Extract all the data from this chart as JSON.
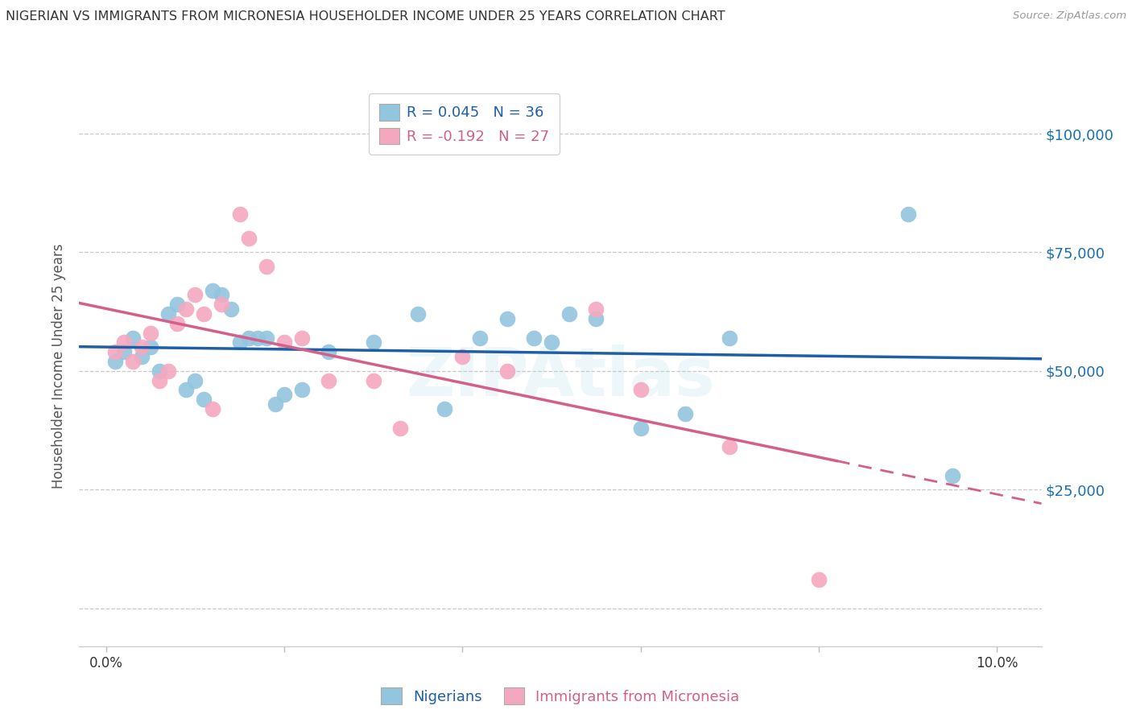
{
  "title": "NIGERIAN VS IMMIGRANTS FROM MICRONESIA HOUSEHOLDER INCOME UNDER 25 YEARS CORRELATION CHART",
  "source": "Source: ZipAtlas.com",
  "ylabel": "Householder Income Under 25 years",
  "legend_blue_label": "Nigerians",
  "legend_pink_label": "Immigrants from Micronesia",
  "r_blue": 0.045,
  "n_blue": 36,
  "r_pink": -0.192,
  "n_pink": 27,
  "blue_color": "#92c5de",
  "pink_color": "#f4a8c0",
  "blue_line_color": "#1f5fa6",
  "pink_line_color": "#d45f8a",
  "blue_scatter": [
    [
      0.001,
      52000
    ],
    [
      0.002,
      54000
    ],
    [
      0.003,
      57000
    ],
    [
      0.004,
      53000
    ],
    [
      0.005,
      55000
    ],
    [
      0.006,
      50000
    ],
    [
      0.007,
      62000
    ],
    [
      0.008,
      64000
    ],
    [
      0.009,
      46000
    ],
    [
      0.01,
      48000
    ],
    [
      0.011,
      44000
    ],
    [
      0.012,
      67000
    ],
    [
      0.013,
      66000
    ],
    [
      0.014,
      63000
    ],
    [
      0.015,
      56000
    ],
    [
      0.016,
      57000
    ],
    [
      0.017,
      57000
    ],
    [
      0.018,
      57000
    ],
    [
      0.019,
      43000
    ],
    [
      0.02,
      45000
    ],
    [
      0.022,
      46000
    ],
    [
      0.025,
      54000
    ],
    [
      0.03,
      56000
    ],
    [
      0.035,
      62000
    ],
    [
      0.038,
      42000
    ],
    [
      0.042,
      57000
    ],
    [
      0.045,
      61000
    ],
    [
      0.048,
      57000
    ],
    [
      0.05,
      56000
    ],
    [
      0.052,
      62000
    ],
    [
      0.055,
      61000
    ],
    [
      0.06,
      38000
    ],
    [
      0.065,
      41000
    ],
    [
      0.07,
      57000
    ],
    [
      0.09,
      83000
    ],
    [
      0.095,
      28000
    ]
  ],
  "pink_scatter": [
    [
      0.001,
      54000
    ],
    [
      0.002,
      56000
    ],
    [
      0.003,
      52000
    ],
    [
      0.004,
      55000
    ],
    [
      0.005,
      58000
    ],
    [
      0.006,
      48000
    ],
    [
      0.007,
      50000
    ],
    [
      0.008,
      60000
    ],
    [
      0.009,
      63000
    ],
    [
      0.01,
      66000
    ],
    [
      0.011,
      62000
    ],
    [
      0.012,
      42000
    ],
    [
      0.013,
      64000
    ],
    [
      0.015,
      83000
    ],
    [
      0.016,
      78000
    ],
    [
      0.018,
      72000
    ],
    [
      0.02,
      56000
    ],
    [
      0.022,
      57000
    ],
    [
      0.025,
      48000
    ],
    [
      0.03,
      48000
    ],
    [
      0.033,
      38000
    ],
    [
      0.04,
      53000
    ],
    [
      0.045,
      50000
    ],
    [
      0.055,
      63000
    ],
    [
      0.06,
      46000
    ],
    [
      0.07,
      34000
    ],
    [
      0.08,
      6000
    ]
  ],
  "yticks": [
    0,
    25000,
    50000,
    75000,
    100000
  ],
  "ytick_labels": [
    "",
    "$25,000",
    "$50,000",
    "$75,000",
    "$100,000"
  ],
  "ymin": -8000,
  "ymax": 110000,
  "xmin": -0.003,
  "xmax": 0.105,
  "blue_line_xmin": -0.003,
  "blue_line_xmax": 0.105,
  "pink_line_solid_xmax": 0.082,
  "pink_line_dash_xmax": 0.105,
  "watermark": "ZIPAtlas",
  "bg_color": "#ffffff",
  "grid_color": "#c8c8c8"
}
